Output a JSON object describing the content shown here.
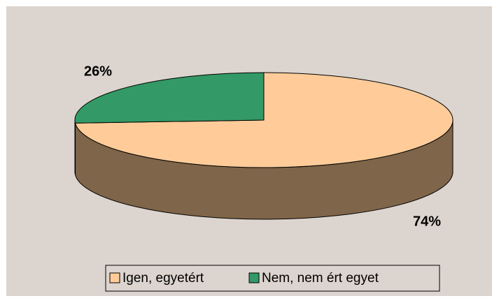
{
  "chart_data": {
    "type": "pie",
    "categories": [
      "Igen, egyetért",
      "Nem, nem ért egyet"
    ],
    "values": [
      74,
      26
    ],
    "value_labels": [
      "74%",
      "26%"
    ],
    "colors": [
      "#ffcc99",
      "#339966"
    ],
    "legend": "bottom"
  }
}
